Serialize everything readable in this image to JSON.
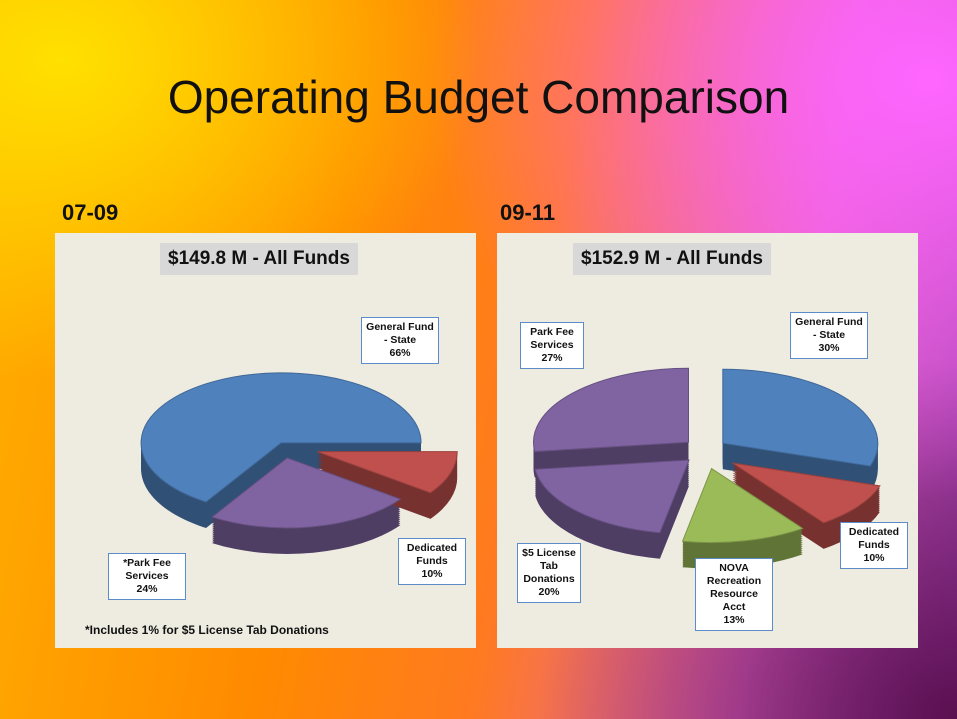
{
  "slide_title": "Operating Budget Comparison",
  "chart_data": [
    {
      "type": "pie",
      "period": "07-09",
      "title": "$149.8 M - All Funds",
      "categories": [
        "General Fund - State",
        "*Park Fee Services",
        "Dedicated Funds"
      ],
      "values": [
        66,
        24,
        10
      ],
      "value_labels": [
        "66%",
        "24%",
        "10%"
      ],
      "colors": [
        "#4f81bd",
        "#8064a2",
        "#c0504d"
      ],
      "annotation": "*Includes 1%  for $5 License Tab Donations"
    },
    {
      "type": "pie",
      "period": "09-11",
      "title": "$152.9 M - All Funds",
      "categories": [
        "General Fund - State",
        "Dedicated Funds",
        "NOVA Recreation Resource Acct",
        "$5 License Tab Donations",
        "Park Fee Services"
      ],
      "values": [
        30,
        10,
        13,
        20,
        27
      ],
      "value_labels": [
        "30%",
        "10%",
        "13%",
        "20%",
        "27%"
      ],
      "colors": [
        "#4f81bd",
        "#c0504d",
        "#9bbb59",
        "#8064a2",
        "#8064a2"
      ]
    }
  ]
}
